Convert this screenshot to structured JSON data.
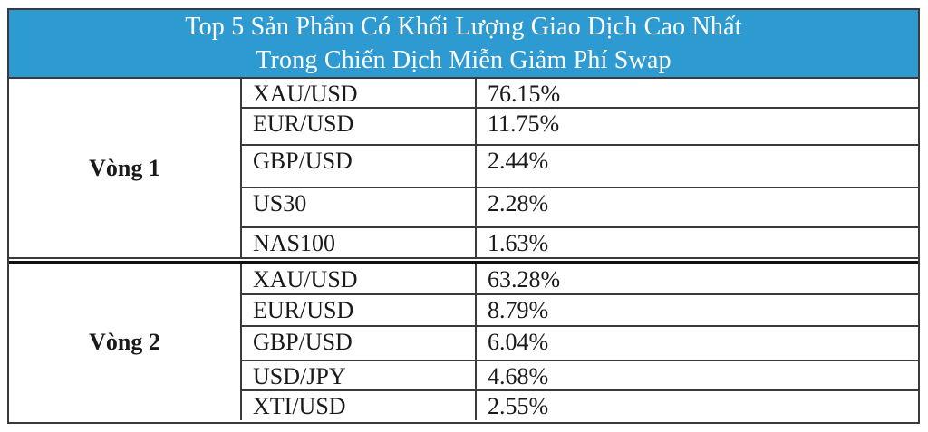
{
  "title": {
    "line1": "Top 5 Sản Phẩm Có Khối Lượng Giao Dịch Cao Nhất",
    "line2": "Trong Chiến Dịch Miễn Giảm Phí Swap"
  },
  "colors": {
    "header_bg": "#2E9AD2",
    "header_text": "#FFFFFF",
    "border": "#3A3A3A",
    "divider": "#111111",
    "text": "#1A1A1A"
  },
  "sections": [
    {
      "label": "Vòng 1",
      "rows": [
        {
          "product": "XAU/USD",
          "share": "76.15%"
        },
        {
          "product": "EUR/USD",
          "share": "11.75%"
        },
        {
          "product": "GBP/USD",
          "share": "2.44%"
        },
        {
          "product": "US30",
          "share": "2.28%"
        },
        {
          "product": "NAS100",
          "share": "1.63%"
        }
      ]
    },
    {
      "label": "Vòng 2",
      "rows": [
        {
          "product": "XAU/USD",
          "share": "63.28%"
        },
        {
          "product": "EUR/USD",
          "share": "8.79%"
        },
        {
          "product": "GBP/USD",
          "share": "6.04%"
        },
        {
          "product": "USD/JPY",
          "share": "4.68%"
        },
        {
          "product": "XTI/USD",
          "share": "2.55%"
        }
      ]
    }
  ]
}
